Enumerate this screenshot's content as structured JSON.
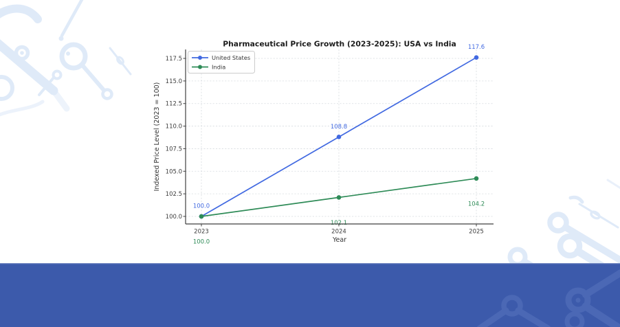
{
  "colors": {
    "footer_band": "#3c5aab",
    "decoration_light": "#dfeaf8",
    "decoration_on_band": "#4b68b5"
  },
  "chart_data": {
    "type": "line",
    "title": "Pharmaceutical Price Growth (2023-2025): USA vs India",
    "xlabel": "Year",
    "ylabel": "Indexed Price Level (2023 = 100)",
    "x": [
      2023,
      2024,
      2025
    ],
    "xtick_labels": [
      "2023",
      "2024",
      "2025"
    ],
    "ytick_values": [
      100.0,
      102.5,
      105.0,
      107.5,
      110.0,
      112.5,
      115.0,
      117.5
    ],
    "ytick_labels": [
      "100.0",
      "102.5",
      "105.0",
      "107.5",
      "110.0",
      "112.5",
      "115.0",
      "117.5"
    ],
    "xlim": [
      2022.885,
      2025.125
    ],
    "ylim": [
      99.163,
      118.489
    ],
    "grid": true,
    "legend_position": "upper-left",
    "series": [
      {
        "name": "United States",
        "color": "#4169e1",
        "values": [
          100.0,
          108.8,
          117.6
        ],
        "labels": [
          "100.0",
          "108.8",
          "117.6"
        ],
        "label_side": "above"
      },
      {
        "name": "India",
        "color": "#2e8b57",
        "values": [
          100.0,
          102.1,
          104.2
        ],
        "labels": [
          "100.0",
          "102.1",
          "104.2"
        ],
        "label_side": "below"
      }
    ]
  }
}
